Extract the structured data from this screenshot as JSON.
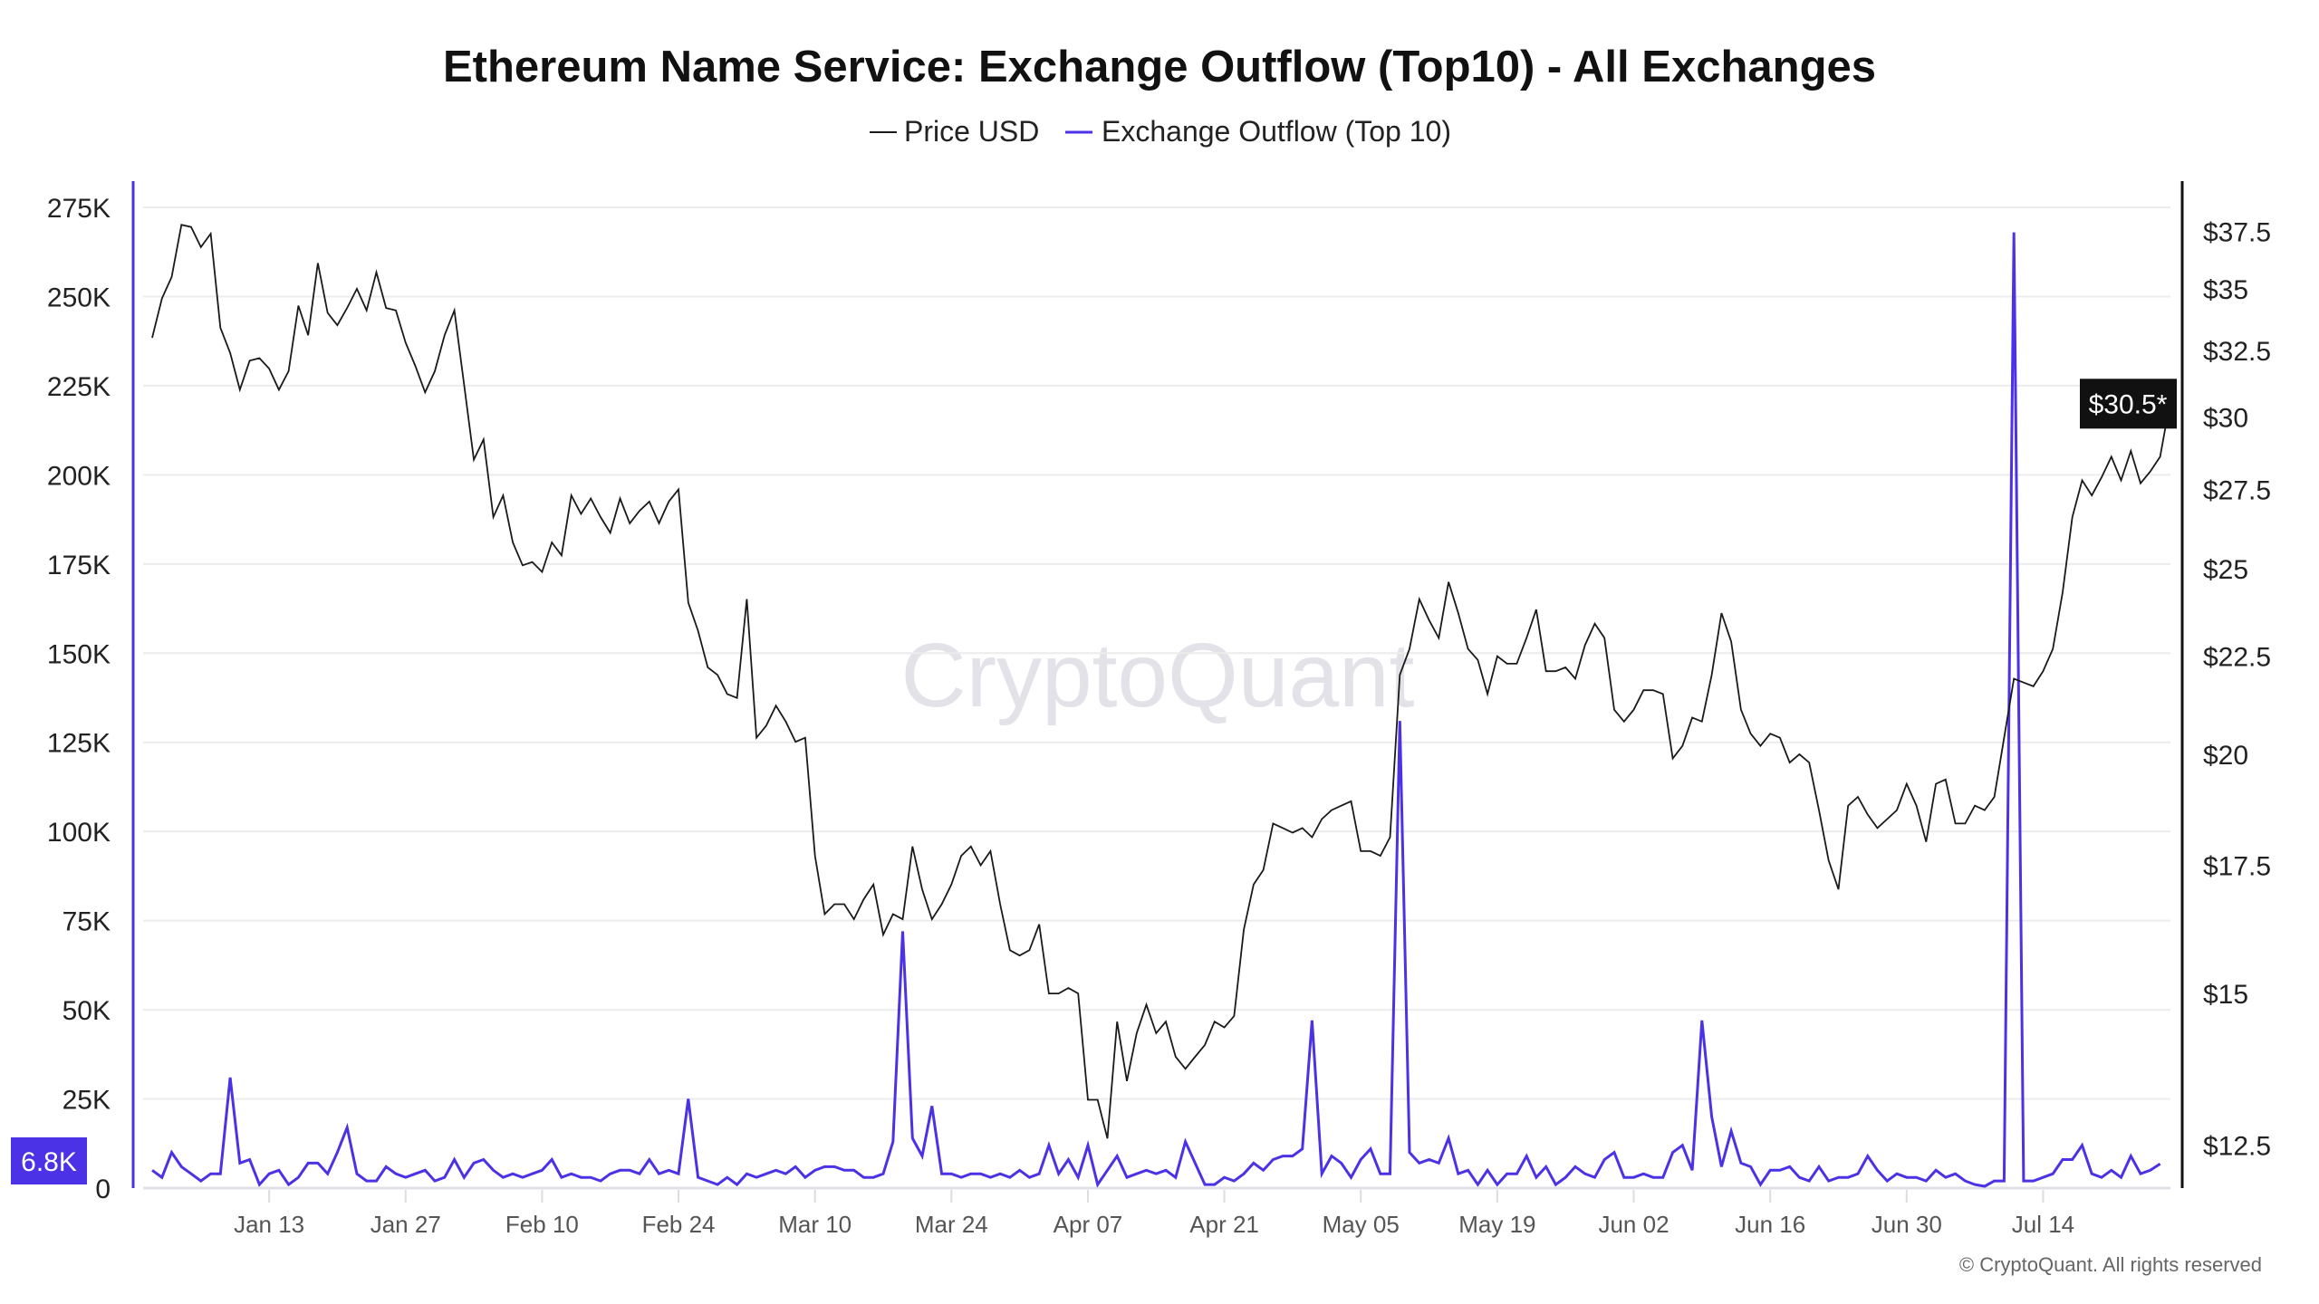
{
  "colors": {
    "price": "#1a1a1a",
    "outflow": "#4b32e6",
    "grid": "#ececec",
    "badge_price": "#111111",
    "badge_outflow": "#4b32e6"
  },
  "chart_data": {
    "type": "line",
    "title": "Ethereum Name Service: Exchange Outflow (Top10) - All Exchanges",
    "legend": [
      "Price USD",
      "Exchange Outflow (Top 10)"
    ],
    "legend_position": "top-center",
    "start_date": "Jan 01",
    "x_tick_labels": [
      "Jan 13",
      "Jan 27",
      "Feb 10",
      "Feb 24",
      "Mar 10",
      "Mar 24",
      "Apr 07",
      "Apr 21",
      "May 05",
      "May 19",
      "Jun 02",
      "Jun 16",
      "Jun 30",
      "Jul 14"
    ],
    "x_tick_day_index": [
      12,
      26,
      40,
      54,
      68,
      82,
      96,
      110,
      124,
      138,
      152,
      166,
      180,
      194
    ],
    "left_axis": {
      "label": "Exchange Outflow (Top 10)",
      "ylim": [
        0,
        275000
      ],
      "ticks": [
        0,
        25000,
        50000,
        75000,
        100000,
        125000,
        150000,
        175000,
        200000,
        225000,
        250000,
        275000
      ],
      "tick_labels": [
        "0",
        "25K",
        "50K",
        "75K",
        "100K",
        "125K",
        "150K",
        "175K",
        "200K",
        "225K",
        "250K",
        "275K"
      ]
    },
    "right_axis": {
      "label": "Price USD",
      "scale": "log",
      "ylim": [
        11.87,
        38.6
      ],
      "ticks": [
        12.5,
        15,
        17.5,
        20,
        22.5,
        25,
        27.5,
        30,
        32.5,
        35,
        37.5
      ],
      "tick_labels": [
        "$12.5",
        "$15",
        "$17.5",
        "$20",
        "$22.5",
        "$25",
        "$27.5",
        "$30",
        "$32.5",
        "$35",
        "$37.5"
      ]
    },
    "grid": true,
    "current_labels": {
      "price": "$30.5*",
      "outflow": "6.8K"
    },
    "series": [
      {
        "name": "Price USD",
        "axis": "right",
        "values": [
          33.0,
          34.6,
          35.5,
          37.8,
          37.7,
          36.8,
          37.4,
          33.4,
          32.4,
          31.0,
          32.1,
          32.2,
          31.8,
          31.0,
          31.7,
          34.3,
          33.1,
          36.1,
          34.0,
          33.5,
          34.2,
          35.0,
          34.1,
          35.7,
          34.2,
          34.1,
          32.8,
          31.9,
          30.9,
          31.7,
          33.1,
          34.1,
          31.2,
          28.5,
          29.2,
          26.6,
          27.3,
          25.8,
          25.1,
          25.2,
          24.9,
          25.8,
          25.4,
          27.3,
          26.7,
          27.2,
          26.6,
          26.1,
          27.2,
          26.4,
          26.8,
          27.1,
          26.4,
          27.1,
          27.5,
          24.0,
          23.2,
          22.2,
          22.0,
          21.5,
          21.4,
          24.1,
          20.4,
          20.7,
          21.2,
          20.8,
          20.3,
          20.4,
          17.7,
          16.5,
          16.7,
          16.7,
          16.4,
          16.8,
          17.1,
          16.1,
          16.5,
          16.4,
          17.9,
          17.0,
          16.4,
          16.7,
          17.1,
          17.7,
          17.9,
          17.5,
          17.8,
          16.7,
          15.8,
          15.7,
          15.8,
          16.3,
          15.0,
          15.0,
          15.1,
          15.0,
          13.2,
          13.2,
          12.6,
          14.5,
          13.5,
          14.3,
          14.8,
          14.3,
          14.5,
          13.9,
          13.7,
          13.9,
          14.1,
          14.5,
          14.4,
          14.6,
          16.2,
          17.1,
          17.4,
          18.4,
          18.3,
          18.2,
          18.3,
          18.1,
          18.5,
          18.7,
          18.8,
          18.9,
          17.8,
          17.8,
          17.7,
          18.1,
          22.0,
          22.7,
          24.1,
          23.5,
          23.0,
          24.6,
          23.7,
          22.7,
          22.4,
          21.5,
          22.5,
          22.3,
          22.3,
          23.0,
          23.8,
          22.1,
          22.1,
          22.2,
          21.9,
          22.8,
          23.4,
          23.0,
          21.1,
          20.8,
          21.1,
          21.6,
          21.6,
          21.5,
          19.9,
          20.2,
          20.9,
          20.8,
          22.0,
          23.7,
          22.9,
          21.1,
          20.5,
          20.2,
          20.5,
          20.4,
          19.8,
          20.0,
          19.8,
          18.7,
          17.6,
          17.0,
          18.8,
          19.0,
          18.6,
          18.3,
          18.5,
          18.7,
          19.3,
          18.8,
          18.0,
          19.3,
          19.4,
          18.4,
          18.4,
          18.8,
          18.7,
          19.0,
          20.4,
          21.9,
          21.8,
          21.7,
          22.1,
          22.7,
          24.3,
          26.6,
          27.8,
          27.3,
          27.9,
          28.6,
          27.8,
          28.8,
          27.7,
          28.1,
          28.6,
          30.5
        ]
      },
      {
        "name": "Exchange Outflow (Top 10)",
        "axis": "left",
        "values": [
          5000,
          3000,
          10000,
          6000,
          4000,
          2000,
          4000,
          4000,
          31000,
          7000,
          8000,
          1000,
          4000,
          5000,
          1000,
          3000,
          7000,
          7000,
          4000,
          10000,
          17000,
          4000,
          2000,
          2000,
          6000,
          4000,
          3000,
          4000,
          5000,
          2000,
          3000,
          8000,
          3000,
          7000,
          8000,
          5000,
          3000,
          4000,
          3000,
          4000,
          5000,
          8000,
          3000,
          4000,
          3000,
          3000,
          2000,
          4000,
          5000,
          5000,
          4000,
          8000,
          4000,
          5000,
          4000,
          25000,
          3000,
          2000,
          1000,
          3000,
          1000,
          4000,
          3000,
          4000,
          5000,
          4000,
          6000,
          3000,
          5000,
          6000,
          6000,
          5000,
          5000,
          3000,
          3000,
          4000,
          13000,
          72000,
          14000,
          9000,
          23000,
          4000,
          4000,
          3000,
          4000,
          4000,
          3000,
          4000,
          3000,
          5000,
          3000,
          4000,
          12000,
          4000,
          8000,
          3000,
          12000,
          1000,
          5000,
          9000,
          3000,
          4000,
          5000,
          4000,
          5000,
          3000,
          13000,
          7000,
          1000,
          1000,
          3000,
          2000,
          4000,
          7000,
          5000,
          8000,
          9000,
          9000,
          11000,
          47000,
          4000,
          9000,
          7000,
          3000,
          8000,
          11000,
          4000,
          4000,
          131000,
          10000,
          7000,
          8000,
          7000,
          14000,
          4000,
          5000,
          1000,
          5000,
          1000,
          4000,
          4000,
          9000,
          3000,
          6000,
          1000,
          3000,
          6000,
          4000,
          3000,
          8000,
          10000,
          3000,
          3000,
          4000,
          3000,
          3000,
          10000,
          12000,
          5000,
          47000,
          20000,
          6000,
          16000,
          7000,
          6000,
          1000,
          5000,
          5000,
          6000,
          3000,
          2000,
          6000,
          2000,
          3000,
          3000,
          4000,
          9000,
          5000,
          2000,
          4000,
          3000,
          3000,
          2000,
          5000,
          3000,
          4000,
          2000,
          1000,
          500,
          2000,
          2000,
          268000,
          2000,
          2000,
          3000,
          4000,
          8000,
          8000,
          12000,
          4000,
          3000,
          5000,
          3000,
          9000,
          4000,
          5000,
          6800
        ]
      }
    ]
  },
  "watermark": "CryptoQuant",
  "copyright": "© CryptoQuant. All rights reserved"
}
